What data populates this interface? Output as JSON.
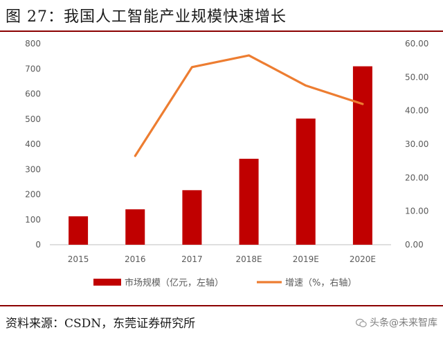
{
  "header": {
    "title": "图 27：我国人工智能产业规模快速增长"
  },
  "footer": {
    "source": "资料来源：CSDN，东莞证券研究所",
    "watermark": "头条@未来智库",
    "watermark_icon": "wechat-icon"
  },
  "colors": {
    "bar": "#c00000",
    "line": "#ed7d31",
    "rule": "#8b0000",
    "axis_text": "#595959"
  },
  "chart_data": {
    "type": "bar",
    "title": "",
    "categories": [
      "2015",
      "2016",
      "2017",
      "2018E",
      "2019E",
      "2020E"
    ],
    "series": [
      {
        "name": "市场规模（亿元，左轴）",
        "type": "bar",
        "axis": "left",
        "values": [
          113,
          141,
          217,
          342,
          502,
          710
        ]
      },
      {
        "name": "增速（%，右轴）",
        "type": "line",
        "axis": "right",
        "values": [
          null,
          26.5,
          53.0,
          56.5,
          47.5,
          42.0
        ]
      }
    ],
    "y_left": {
      "min": 0,
      "max": 800,
      "ticks": [
        "0",
        "100",
        "200",
        "300",
        "400",
        "500",
        "600",
        "700",
        "800"
      ]
    },
    "y_right": {
      "min": 0,
      "max": 60,
      "ticks": [
        "0.00",
        "10.00",
        "20.00",
        "30.00",
        "40.00",
        "50.00",
        "60.00"
      ]
    },
    "grid": false,
    "legend_position": "bottom"
  }
}
